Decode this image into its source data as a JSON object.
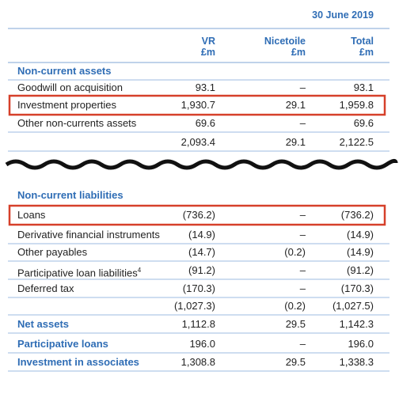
{
  "header": {
    "date": "30 June 2019",
    "columns": [
      [
        "VR",
        "£m"
      ],
      [
        "Nicetoile",
        "£m"
      ],
      [
        "Total",
        "£m"
      ]
    ]
  },
  "rows": [
    {
      "label": "Non-current assets"
    },
    {
      "label": "Goodwill on acquisition",
      "values": [
        "93.1",
        "–",
        "93.1"
      ]
    },
    {
      "label": "Investment properties",
      "values": [
        "1,930.7",
        "29.1",
        "1,959.8"
      ]
    },
    {
      "label": "Other non-currents assets",
      "values": [
        "69.6",
        "–",
        "69.6"
      ]
    },
    {
      "label": null,
      "values": [
        "2,093.4",
        "29.1",
        "2,122.5"
      ]
    },
    {
      "label": "Non-current liabilities"
    },
    {
      "label": "Loans",
      "values": [
        "(736.2)",
        "–",
        "(736.2)"
      ]
    },
    {
      "label": "Derivative financial instruments",
      "values": [
        "(14.9)",
        "–",
        "(14.9)"
      ]
    },
    {
      "label": "Other payables",
      "values": [
        "(14.7)",
        "(0.2)",
        "(14.9)"
      ]
    },
    {
      "label": "Participative loan liabilities",
      "footnote": "4",
      "values": [
        "(91.2)",
        "–",
        "(91.2)"
      ]
    },
    {
      "label": "Deferred tax",
      "values": [
        "(170.3)",
        "–",
        "(170.3)"
      ]
    },
    {
      "label": null,
      "values": [
        "(1,027.3)",
        "(0.2)",
        "(1,027.5)"
      ]
    },
    {
      "label": "Net assets",
      "values": [
        "1,112.8",
        "29.5",
        "1,142.3"
      ]
    },
    {
      "label": "Participative loans",
      "values": [
        "196.0",
        "–",
        "196.0"
      ]
    },
    {
      "label": "Investment in associates",
      "values": [
        "1,308.8",
        "29.5",
        "1,338.3"
      ]
    }
  ]
}
